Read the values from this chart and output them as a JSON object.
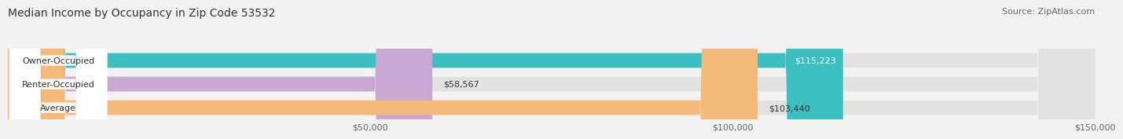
{
  "title": "Median Income by Occupancy in Zip Code 53532",
  "source": "Source: ZipAtlas.com",
  "categories": [
    "Owner-Occupied",
    "Renter-Occupied",
    "Average"
  ],
  "values": [
    115223,
    58567,
    103440
  ],
  "labels": [
    "$115,223",
    "$58,567",
    "$103,440"
  ],
  "bar_colors": [
    "#3bbfc0",
    "#c9a8d4",
    "#f5b97a"
  ],
  "label_text_colors": [
    "white",
    "#333333",
    "#333333"
  ],
  "label_inside": [
    true,
    false,
    false
  ],
  "background_color": "#f2f2f2",
  "bar_bg_color": "#e2e2e2",
  "xlim": [
    0,
    150000
  ],
  "xticks": [
    0,
    50000,
    100000,
    150000
  ],
  "xticklabels": [
    "",
    "$50,000",
    "$100,000",
    "$150,000"
  ],
  "title_fontsize": 10,
  "source_fontsize": 8,
  "label_fontsize": 8,
  "cat_fontsize": 8,
  "bar_height": 0.62,
  "rounding_size": 8000
}
